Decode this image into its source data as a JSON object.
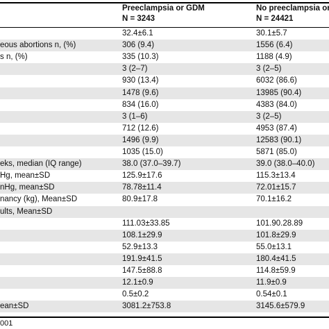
{
  "header": {
    "group1_line1": "Preeclampsia or GDM",
    "group1_line2": "N = 3243",
    "group2_line1": "No preeclampsia or",
    "group2_line2": "N = 24421"
  },
  "rows": [
    {
      "label": "",
      "g1": "32.4±6.1",
      "g2": "30.1±5.7"
    },
    {
      "label": "eous abortions n, (%)",
      "g1": "306 (9.4)",
      "g2": "1556 (6.4)"
    },
    {
      "label": "s n, (%)",
      "g1": "335 (10.3)",
      "g2": "1188 (4.9)"
    },
    {
      "label": "",
      "g1": "3 (2–7)",
      "g2": "3 (2–5)"
    },
    {
      "label": "",
      "g1": "930 (13.4)",
      "g2": "6032 (86.6)"
    },
    {
      "label": "",
      "g1": "1478 (9.6)",
      "g2": "13985 (90.4)"
    },
    {
      "label": "",
      "g1": "834 (16.0)",
      "g2": "4383 (84.0)"
    },
    {
      "label": "",
      "g1": "3 (1–6)",
      "g2": "3 (2–5)"
    },
    {
      "label": "",
      "g1": "712 (12.6)",
      "g2": "4953 (87.4)"
    },
    {
      "label": "",
      "g1": "1496 (9.9)",
      "g2": "12583 (90.1)"
    },
    {
      "label": "",
      "g1": "1035 (15.0)",
      "g2": "5871 (85.0)"
    },
    {
      "label": "eks, median (IQ range)",
      "g1": "38.0 (37.0–39.7)",
      "g2": "39.0 (38.0–40.0)"
    },
    {
      "label": "Hg, mean±SD",
      "g1": "125.9±17.6",
      "g2": "115.3±13.4"
    },
    {
      "label": "nHg, mean±SD",
      "g1": "78.78±11.4",
      "g2": "72.01±15.7"
    },
    {
      "label": "nancy (kg), Mean±SD",
      "g1": "80.9±17.8",
      "g2": "70.1±16.2"
    },
    {
      "label": "ults, Mean±SD",
      "g1": "",
      "g2": ""
    },
    {
      "label": "",
      "g1": "111.03±33.85",
      "g2": "101.90.28.89"
    },
    {
      "label": "",
      "g1": "108.1±29.9",
      "g2": "101.8±29.9"
    },
    {
      "label": "",
      "g1": "52.9±13.3",
      "g2": "55.0±13.1"
    },
    {
      "label": "",
      "g1": "191.9±41.5",
      "g2": "180.4±41.5"
    },
    {
      "label": "",
      "g1": "147.5±88.8",
      "g2": "114.8±59.9"
    },
    {
      "label": "",
      "g1": "12.1±0.9",
      "g2": "11.9±0.9"
    },
    {
      "label": "",
      "g1": "0.5±0.2",
      "g2": "0.54±0.1"
    },
    {
      "label": "ean±SD",
      "g1": "3081.2±753.8",
      "g2": "3145.6±579.9"
    }
  ],
  "footer": "001"
}
